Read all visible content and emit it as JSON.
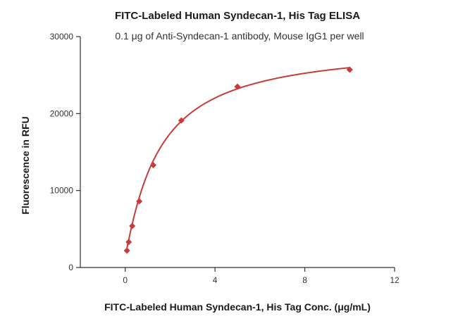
{
  "chart_data": {
    "type": "scatter",
    "title": "FITC-Labeled Human Syndecan-1, His Tag ELISA",
    "subtitle": "0.1 μg of Anti-Syndecan-1 antibody, Mouse IgG1 per well",
    "xlabel": "FITC-Labeled Human Syndecan-1, His Tag Conc. (μg/mL)",
    "ylabel": "Fluorescence in RFU",
    "xlim": [
      -2,
      12
    ],
    "ylim": [
      0,
      30000
    ],
    "xticks": [
      0,
      4,
      8,
      12
    ],
    "yticks": [
      0,
      10000,
      20000,
      30000
    ],
    "grid": false,
    "colors": {
      "series": "#c93a3a",
      "axis": "#333333"
    },
    "series": [
      {
        "marker": "diamond",
        "x": [
          0.078,
          0.156,
          0.313,
          0.625,
          1.25,
          2.5,
          5,
          10
        ],
        "y": [
          2200,
          3300,
          5400,
          8600,
          13300,
          19100,
          23500,
          25700
        ]
      }
    ],
    "fit_curve": {
      "model": "4PL",
      "x_range": [
        0.078,
        10
      ],
      "bottom": 1500,
      "top": 29000,
      "ec50": 1.5,
      "hill": 1.1
    }
  }
}
